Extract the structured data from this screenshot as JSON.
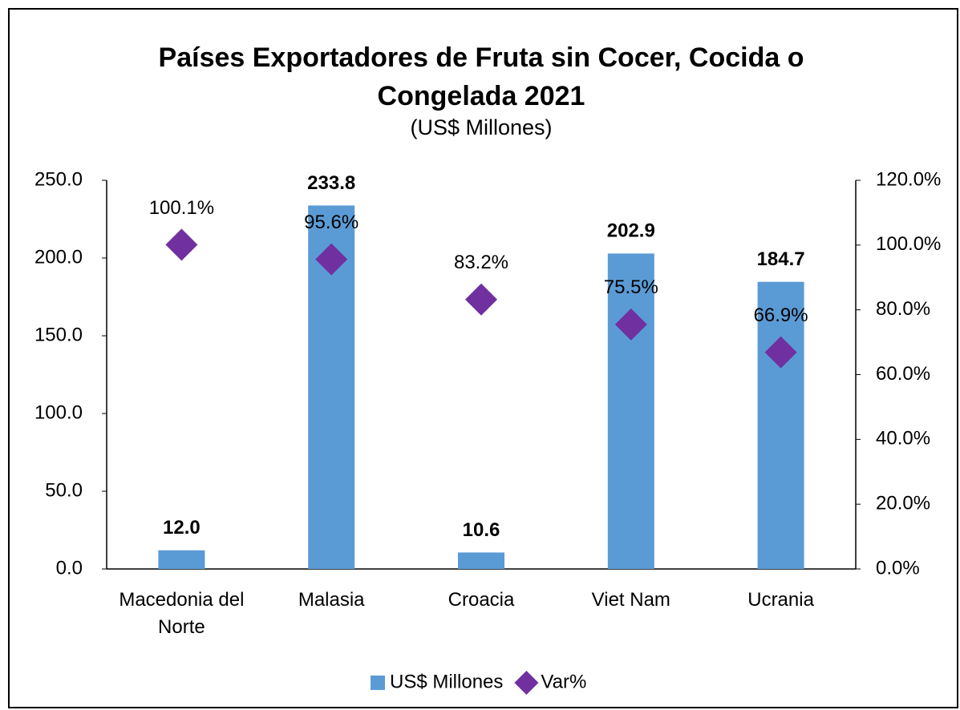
{
  "chart_data": {
    "type": "bar",
    "title": "Países Exportadores de Fruta sin Cocer, Cocida o Congelada 2021",
    "subtitle": "(US$ Millones)",
    "categories": [
      "Macedonia del Norte",
      "Malasia",
      "Croacia",
      "Viet Nam",
      "Ucrania"
    ],
    "series": [
      {
        "name": "US$ Millones",
        "color": "#5b9bd5",
        "type": "bar",
        "values": [
          12.0,
          233.8,
          10.6,
          202.9,
          184.7
        ],
        "value_labels": [
          "12.0",
          "233.8",
          "10.6",
          "202.9",
          "184.7"
        ]
      },
      {
        "name": "Var%",
        "color": "#7030a0",
        "type": "scatter",
        "axis": "y2",
        "values": [
          100.1,
          95.6,
          83.2,
          75.5,
          66.9
        ],
        "value_labels": [
          "100.1%",
          "95.6%",
          "83.2%",
          "75.5%",
          "66.9%"
        ]
      }
    ],
    "ylim": [
      0,
      250
    ],
    "yticks": [
      {
        "value": 0,
        "label": "0.0"
      },
      {
        "value": 50,
        "label": "50.0"
      },
      {
        "value": 100,
        "label": "100.0"
      },
      {
        "value": 150,
        "label": "150.0"
      },
      {
        "value": 200,
        "label": "200.0"
      },
      {
        "value": 250,
        "label": "250.0"
      }
    ],
    "y2lim": [
      0,
      120
    ],
    "y2ticks": [
      {
        "value": 0,
        "label": "0.0%"
      },
      {
        "value": 20,
        "label": "20.0%"
      },
      {
        "value": 40,
        "label": "40.0%"
      },
      {
        "value": 60,
        "label": "60.0%"
      },
      {
        "value": 80,
        "label": "80.0%"
      },
      {
        "value": 100,
        "label": "100.0%"
      },
      {
        "value": 120,
        "label": "120.0%"
      }
    ],
    "grid": false,
    "legend": "bottom"
  }
}
